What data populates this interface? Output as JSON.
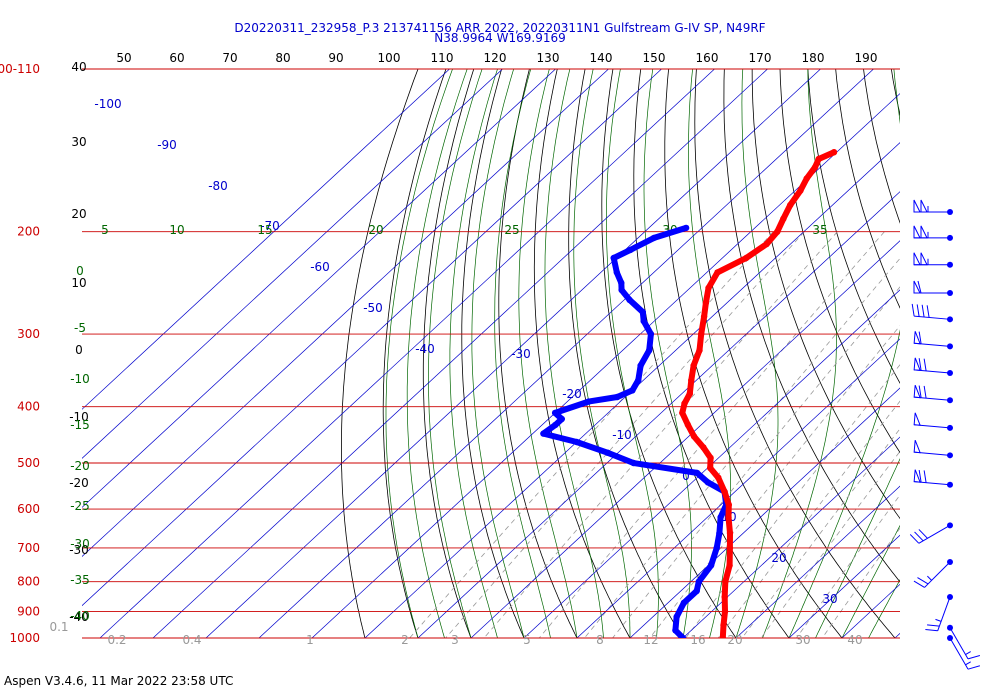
{
  "chart_data": {
    "type": "skew-t",
    "title_line1": "D20220311_232958_P.3 213741156 ARR 2022, 20220311N1 Gulfstream G-IV SP, N49RF",
    "title_line2": "N38.9964 W169.9169",
    "footer": "Aspen V3.4.6, 11 Mar 2022  23:58 UTC",
    "pressure_levels": [
      "100-110",
      "200",
      "300",
      "400",
      "500",
      "600",
      "700",
      "800",
      "900",
      "1000"
    ],
    "top_axis_labels": [
      "50",
      "60",
      "70",
      "80",
      "90",
      "100",
      "110",
      "120",
      "130",
      "140",
      "150",
      "160",
      "170",
      "180",
      "190"
    ],
    "left_altitude_labels": [
      "40",
      "30",
      "20",
      "10",
      "0",
      "-10",
      "-20",
      "-30",
      "-40"
    ],
    "isotherm_labels": [
      "-100",
      "-90",
      "-80",
      "-70",
      "-60",
      "-50",
      "-40",
      "-30",
      "-20",
      "-10",
      "0",
      "10",
      "20",
      "30"
    ],
    "theta_labels": [
      "5",
      "10",
      "15",
      "20",
      "25",
      "30",
      "35"
    ],
    "left_green_labels": [
      "0",
      "-5",
      "-10",
      "-15",
      "-20",
      "-25",
      "-30",
      "-35",
      "-40"
    ],
    "mixing_ratio_labels": [
      "0.1",
      "0.2",
      "0.4",
      "1",
      "2",
      "3",
      "5",
      "8",
      "12",
      "16",
      "20",
      "30",
      "40"
    ],
    "temperature_profile": [
      [
        146,
        -60.5
      ],
      [
        150,
        -62.0
      ],
      [
        155,
        -61.0
      ],
      [
        162,
        -60.3
      ],
      [
        170,
        -59.0
      ],
      [
        180,
        -58.0
      ],
      [
        190,
        -56.5
      ],
      [
        200,
        -55.0
      ],
      [
        210,
        -54.5
      ],
      [
        222,
        -55.5
      ],
      [
        235,
        -58.0
      ],
      [
        250,
        -56.5
      ],
      [
        265,
        -54.0
      ],
      [
        280,
        -51.5
      ],
      [
        300,
        -48.5
      ],
      [
        320,
        -45.5
      ],
      [
        340,
        -43.5
      ],
      [
        360,
        -41.0
      ],
      [
        380,
        -38.5
      ],
      [
        395,
        -37.5
      ],
      [
        410,
        -36.0
      ],
      [
        430,
        -32.5
      ],
      [
        450,
        -29.0
      ],
      [
        470,
        -25.0
      ],
      [
        490,
        -21.5
      ],
      [
        510,
        -19.5
      ],
      [
        530,
        -16.0
      ],
      [
        560,
        -12.0
      ],
      [
        590,
        -8.5
      ],
      [
        620,
        -6.0
      ],
      [
        660,
        -2.5
      ],
      [
        700,
        0.5
      ],
      [
        750,
        4.0
      ],
      [
        800,
        6.5
      ],
      [
        850,
        9.5
      ],
      [
        900,
        12.5
      ],
      [
        950,
        15.0
      ],
      [
        1000,
        17.5
      ]
    ],
    "dewpoint_profile": [
      [
        197,
        -73.0
      ],
      [
        205,
        -77.0
      ],
      [
        215,
        -79.0
      ],
      [
        222,
        -80.5
      ],
      [
        235,
        -77.0
      ],
      [
        245,
        -74.0
      ],
      [
        252,
        -72.5
      ],
      [
        262,
        -69.0
      ],
      [
        275,
        -64.0
      ],
      [
        285,
        -62.0
      ],
      [
        300,
        -58.0
      ],
      [
        320,
        -55.0
      ],
      [
        340,
        -53.5
      ],
      [
        360,
        -51.0
      ],
      [
        375,
        -50.0
      ],
      [
        385,
        -51.5
      ],
      [
        392,
        -56.0
      ],
      [
        410,
        -60.0
      ],
      [
        420,
        -57.5
      ],
      [
        430,
        -57.5
      ],
      [
        445,
        -58.0
      ],
      [
        460,
        -50.0
      ],
      [
        480,
        -42.0
      ],
      [
        500,
        -35.0
      ],
      [
        520,
        -21.0
      ],
      [
        540,
        -17.0
      ],
      [
        560,
        -12.0
      ],
      [
        590,
        -9.0
      ],
      [
        620,
        -7.5
      ],
      [
        660,
        -4.5
      ],
      [
        700,
        -2.0
      ],
      [
        750,
        0.5
      ],
      [
        800,
        1.5
      ],
      [
        830,
        3.0
      ],
      [
        870,
        3.0
      ],
      [
        920,
        4.5
      ],
      [
        970,
        7.0
      ],
      [
        1000,
        10.0
      ]
    ],
    "wind_barbs": [
      {
        "pressure": 185,
        "speed_kt": 105,
        "direction_deg": 270
      },
      {
        "pressure": 205,
        "speed_kt": 105,
        "direction_deg": 270
      },
      {
        "pressure": 228,
        "speed_kt": 105,
        "direction_deg": 270
      },
      {
        "pressure": 255,
        "speed_kt": 60,
        "direction_deg": 270
      },
      {
        "pressure": 283,
        "speed_kt": 40,
        "direction_deg": 275
      },
      {
        "pressure": 315,
        "speed_kt": 60,
        "direction_deg": 275
      },
      {
        "pressure": 350,
        "speed_kt": 70,
        "direction_deg": 275
      },
      {
        "pressure": 390,
        "speed_kt": 70,
        "direction_deg": 275
      },
      {
        "pressure": 435,
        "speed_kt": 50,
        "direction_deg": 275
      },
      {
        "pressure": 485,
        "speed_kt": 50,
        "direction_deg": 275
      },
      {
        "pressure": 545,
        "speed_kt": 70,
        "direction_deg": 275
      },
      {
        "pressure": 640,
        "speed_kt": 30,
        "direction_deg": 240
      },
      {
        "pressure": 740,
        "speed_kt": 25,
        "direction_deg": 225
      },
      {
        "pressure": 850,
        "speed_kt": 25,
        "direction_deg": 200
      },
      {
        "pressure": 960,
        "speed_kt": 15,
        "direction_deg": 150
      },
      {
        "pressure": 1000,
        "speed_kt": 15,
        "direction_deg": 150
      }
    ],
    "colors": {
      "temperature": "#ff0000",
      "dewpoint": "#0000ff",
      "isobar": "#cc0000",
      "isotherm": "#0000cc",
      "dry_adiabat": "#000000",
      "moist_adiabat": "#006600",
      "mixing_ratio": "#999999",
      "title": "#0000cc"
    }
  }
}
